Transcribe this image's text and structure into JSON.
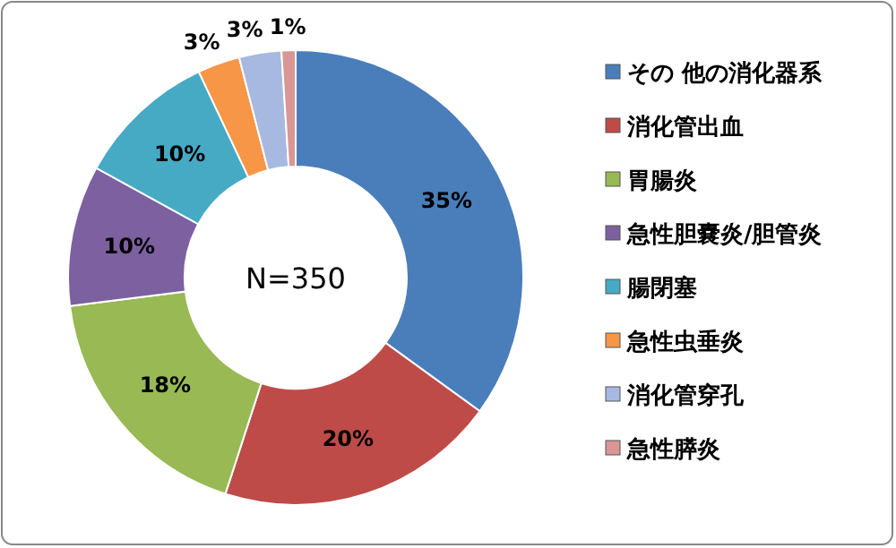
{
  "chart_data": {
    "type": "donut",
    "categories": [
      "その 他の消化器系",
      "消化管出血",
      "胃腸炎",
      "急性胆嚢炎/胆管炎",
      "腸閉塞",
      "急性虫垂炎",
      "消化管穿孔",
      "急性膵炎"
    ],
    "values": [
      35,
      20,
      18,
      10,
      10,
      3,
      3,
      1
    ],
    "colors": [
      "#4a7ebb",
      "#be4b48",
      "#98b954",
      "#7d60a0",
      "#46aac5",
      "#f79646",
      "#a7b9e1",
      "#d99694"
    ],
    "value_labels": [
      "35%",
      "20%",
      "18%",
      "10%",
      "10%",
      "3%",
      "3%",
      "1%"
    ],
    "legend": "right",
    "annotations": [
      "N=350"
    ]
  }
}
